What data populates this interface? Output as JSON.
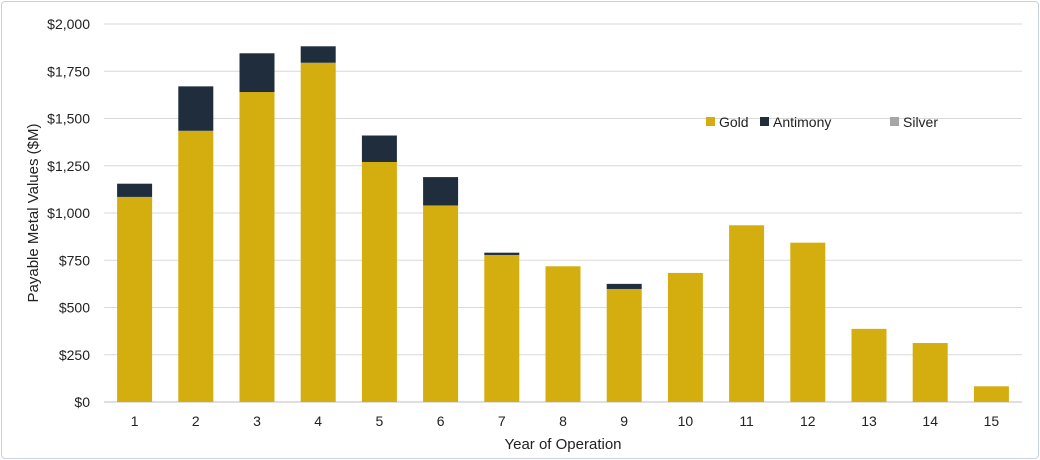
{
  "chart_data": {
    "type": "bar",
    "stacked": true,
    "categories": [
      "1",
      "2",
      "3",
      "4",
      "5",
      "6",
      "7",
      "8",
      "9",
      "10",
      "11",
      "12",
      "13",
      "14",
      "15"
    ],
    "series": [
      {
        "name": "Gold",
        "color": "#d4ad0e",
        "values": [
          1085,
          1435,
          1640,
          1795,
          1270,
          1040,
          778,
          718,
          598,
          683,
          935,
          843,
          387,
          312,
          83
        ]
      },
      {
        "name": "Antimony",
        "color": "#1f2d3d",
        "values": [
          70,
          235,
          205,
          87,
          140,
          150,
          12,
          0,
          27,
          0,
          0,
          0,
          0,
          0,
          0
        ]
      },
      {
        "name": "Silver",
        "color": "#a6a6a6",
        "values": [
          0,
          0,
          0,
          0,
          0,
          0,
          0,
          0,
          0,
          0,
          0,
          0,
          0,
          0,
          0
        ]
      }
    ],
    "xlabel": "Year of Operation",
    "ylabel": "Payable Metal Values ($M)",
    "ylim": [
      0,
      2000
    ],
    "yticks": [
      0,
      250,
      500,
      750,
      1000,
      1250,
      1500,
      1750,
      2000
    ],
    "ytick_labels": [
      "$0",
      "$250",
      "$500",
      "$750",
      "$1,000",
      "$1,250",
      "$1,500",
      "$1,750",
      "$2,000"
    ],
    "grid": true,
    "legend_position": "right, horizontal"
  }
}
